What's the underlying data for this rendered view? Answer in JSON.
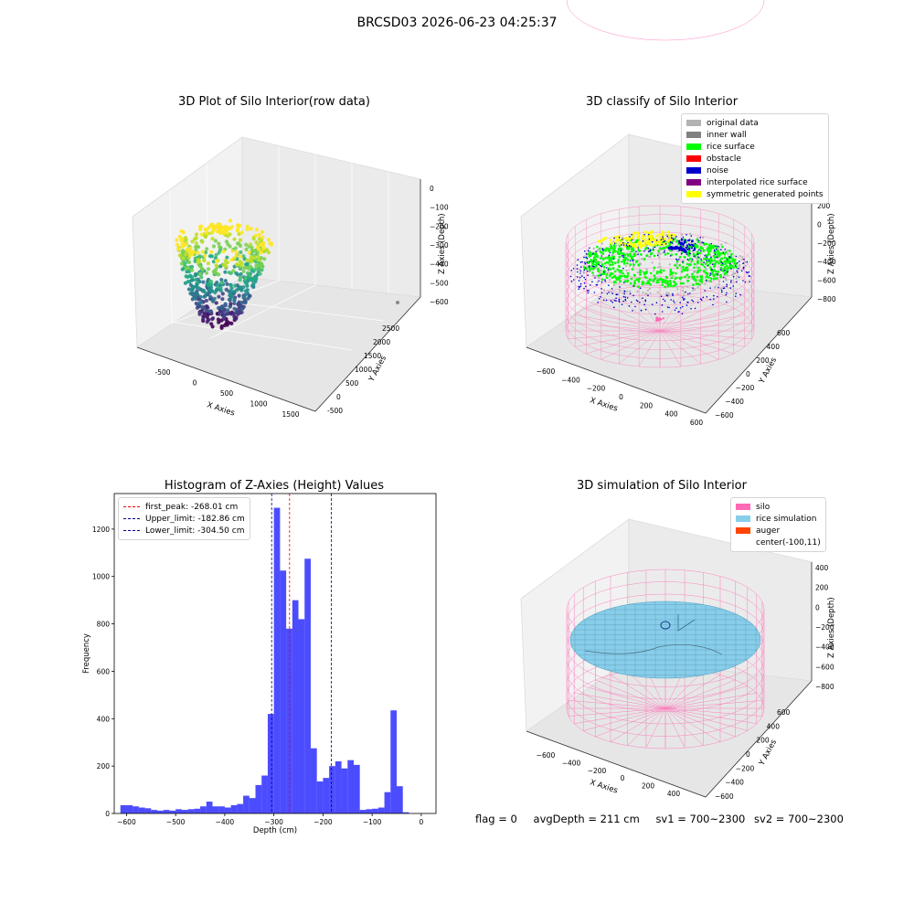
{
  "suptitle": "BRCSD03 2026-06-23 04:25:37",
  "colors": {
    "silo": "#ff69b4",
    "rice_surface": "#00ff00",
    "noise": "#0000cd",
    "original": "#b3b3b3",
    "inner_wall": "#808080",
    "obstacle": "#ff0000",
    "interpolated": "#800080",
    "symmetric": "#ffff00",
    "rice_sim": "#87ceeb",
    "auger": "#ff4500",
    "hist": "#0000ff",
    "peak_line": "#ff0000",
    "limit_line": "#00008b"
  },
  "chart_data": [
    {
      "type": "scatter3d",
      "title": "3D Plot of Silo Interior(row data)",
      "xlabel": "X Axies",
      "ylabel": "Y Axies",
      "zlabel": "Z Axies (Depth)",
      "xticks": [
        "-500",
        "0",
        "500",
        "1000",
        "1500"
      ],
      "yticks": [
        "-500",
        "0",
        "500",
        "1000",
        "1500",
        "2000",
        "2500"
      ],
      "zticks": [
        "0",
        "−100",
        "−200",
        "−300",
        "−400",
        "−500",
        "−600"
      ],
      "colormap": "viridis"
    },
    {
      "type": "scatter3d",
      "title": "3D classify of Silo Interior",
      "xlabel": "X Axies",
      "ylabel": "Y Axies",
      "zlabel": "Z Axies (Depth)",
      "xticks": [
        "−600",
        "−400",
        "−200",
        "0",
        "200",
        "400",
        "600"
      ],
      "yticks": [
        "−600",
        "−400",
        "−200",
        "0",
        "200",
        "400",
        "600"
      ],
      "zticks": [
        "200",
        "0",
        "−200",
        "−400",
        "−600",
        "−800"
      ],
      "legend": [
        {
          "label": "original data",
          "color": "#b3b3b3"
        },
        {
          "label": "inner wall",
          "color": "#808080"
        },
        {
          "label": "rice surface",
          "color": "#00ff00"
        },
        {
          "label": "obstacle",
          "color": "#ff0000"
        },
        {
          "label": "noise",
          "color": "#0000cd"
        },
        {
          "label": "interpolated rice surface",
          "color": "#800080"
        },
        {
          "label": "symmetric generated points",
          "color": "#ffff00"
        }
      ]
    },
    {
      "type": "histogram",
      "title": "Histogram of Z-Axies (Height) Values",
      "xlabel": "Depth (cm)",
      "ylabel": "Frequency",
      "xlim": [
        -625,
        30
      ],
      "ylim": [
        0,
        1350
      ],
      "xticks": [
        -600,
        -500,
        -400,
        -300,
        -200,
        -100,
        0
      ],
      "yticks": [
        0,
        200,
        400,
        600,
        800,
        1000,
        1200
      ],
      "bin_width": 12.5,
      "bin_start": -612.5,
      "values": [
        35,
        35,
        30,
        25,
        22,
        15,
        12,
        15,
        12,
        18,
        15,
        18,
        20,
        30,
        50,
        30,
        30,
        25,
        35,
        40,
        75,
        65,
        120,
        160,
        420,
        1290,
        1025,
        780,
        900,
        820,
        1075,
        275,
        135,
        150,
        200,
        220,
        190,
        225,
        205,
        15,
        18,
        20,
        25,
        90,
        435,
        115,
        5
      ],
      "lines": [
        {
          "label": "first_peak: -268.01 cm",
          "x": -268.01,
          "color": "#ff0000"
        },
        {
          "label": "Upper_limit: -182.86 cm",
          "x": -182.86,
          "color": "#00008b"
        },
        {
          "label": "Lower_limit: -304.50 cm",
          "x": -304.5,
          "color": "#00008b"
        }
      ]
    },
    {
      "type": "surface3d",
      "title": "3D simulation of Silo Interior",
      "xlabel": "X Axies",
      "ylabel": "Y Axies",
      "zlabel": "Z Axies (Depth)",
      "xticks": [
        "−600",
        "−400",
        "−200",
        "0",
        "200",
        "400"
      ],
      "yticks": [
        "−600",
        "−400",
        "−200",
        "0",
        "200",
        "400",
        "600"
      ],
      "zticks": [
        "400",
        "200",
        "0",
        "−200",
        "−400",
        "−600",
        "−800"
      ],
      "legend": [
        {
          "label": "silo",
          "color": "#ff69b4"
        },
        {
          "label": "rice simulation",
          "color": "#87ceeb"
        },
        {
          "label": "auger",
          "color": "#ff4500"
        },
        {
          "label": "center(-100,11)",
          "color": ""
        }
      ]
    }
  ],
  "footer": {
    "flag": "flag = 0",
    "avg_depth": "avgDepth = 211 cm",
    "sv1": "sv1 = 700~2300",
    "sv2": "sv2 = 700~2300"
  }
}
